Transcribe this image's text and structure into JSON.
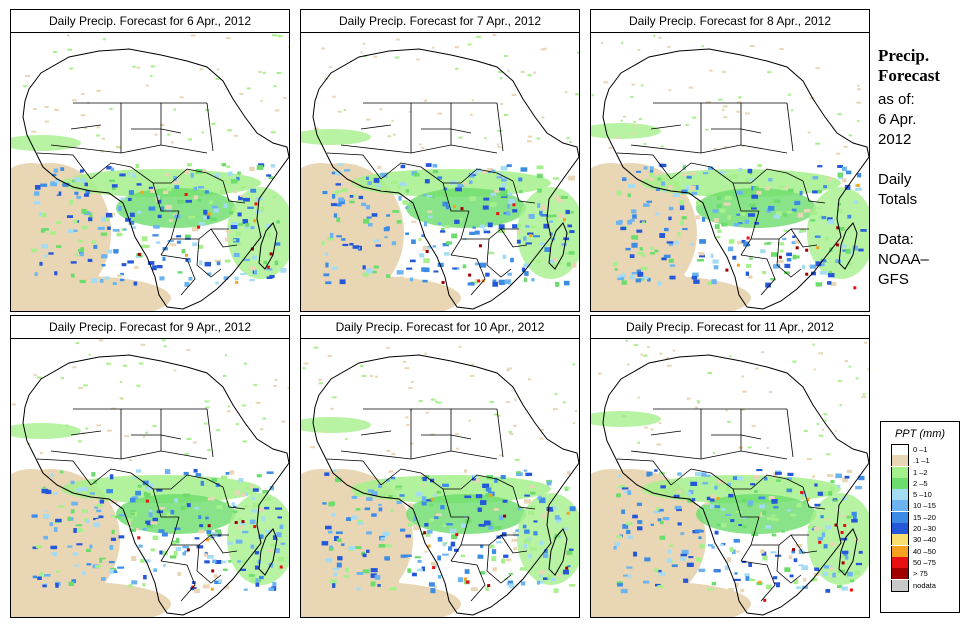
{
  "panels": [
    {
      "title": "Daily Precip. Forecast for  6 Apr., 2012"
    },
    {
      "title": "Daily Precip. Forecast for  7 Apr., 2012"
    },
    {
      "title": "Daily Precip. Forecast for  8 Apr., 2012"
    },
    {
      "title": "Daily Precip. Forecast for  9 Apr., 2012"
    },
    {
      "title": "Daily Precip. Forecast for  10 Apr., 2012"
    },
    {
      "title": "Daily Precip. Forecast for  11 Apr., 2012"
    }
  ],
  "sidebar": {
    "title_line1": "Precip.",
    "title_line2": "Forecast",
    "asof_line1": "as of:",
    "asof_line2": "6 Apr.",
    "asof_line3": "2012",
    "totals_line1": "Daily",
    "totals_line2": "Totals",
    "data_line1": "Data:",
    "data_line2": "NOAA–",
    "data_line3": "GFS"
  },
  "legend": {
    "title": "PPT (mm)",
    "items": [
      {
        "label": "0 –1",
        "color": "#ffffff"
      },
      {
        "label": ".1 –1",
        "color": "#e8d6b4"
      },
      {
        "label": "1 –2",
        "color": "#a6f08c"
      },
      {
        "label": "2 –5",
        "color": "#6cdc6c"
      },
      {
        "label": "5 –10",
        "color": "#a4dcf4"
      },
      {
        "label": "10 –15",
        "color": "#6cb4f0"
      },
      {
        "label": "15 –20",
        "color": "#3c8ce6"
      },
      {
        "label": "20 –30",
        "color": "#2458d8"
      },
      {
        "label": "30 –40",
        "color": "#f8e070"
      },
      {
        "label": "40 –50",
        "color": "#f8a020"
      },
      {
        "label": "50 –75",
        "color": "#e81010"
      },
      {
        "label": "> 75",
        "color": "#a00000"
      },
      {
        "label": "nodata",
        "color": "#c8c8c8"
      }
    ]
  }
}
